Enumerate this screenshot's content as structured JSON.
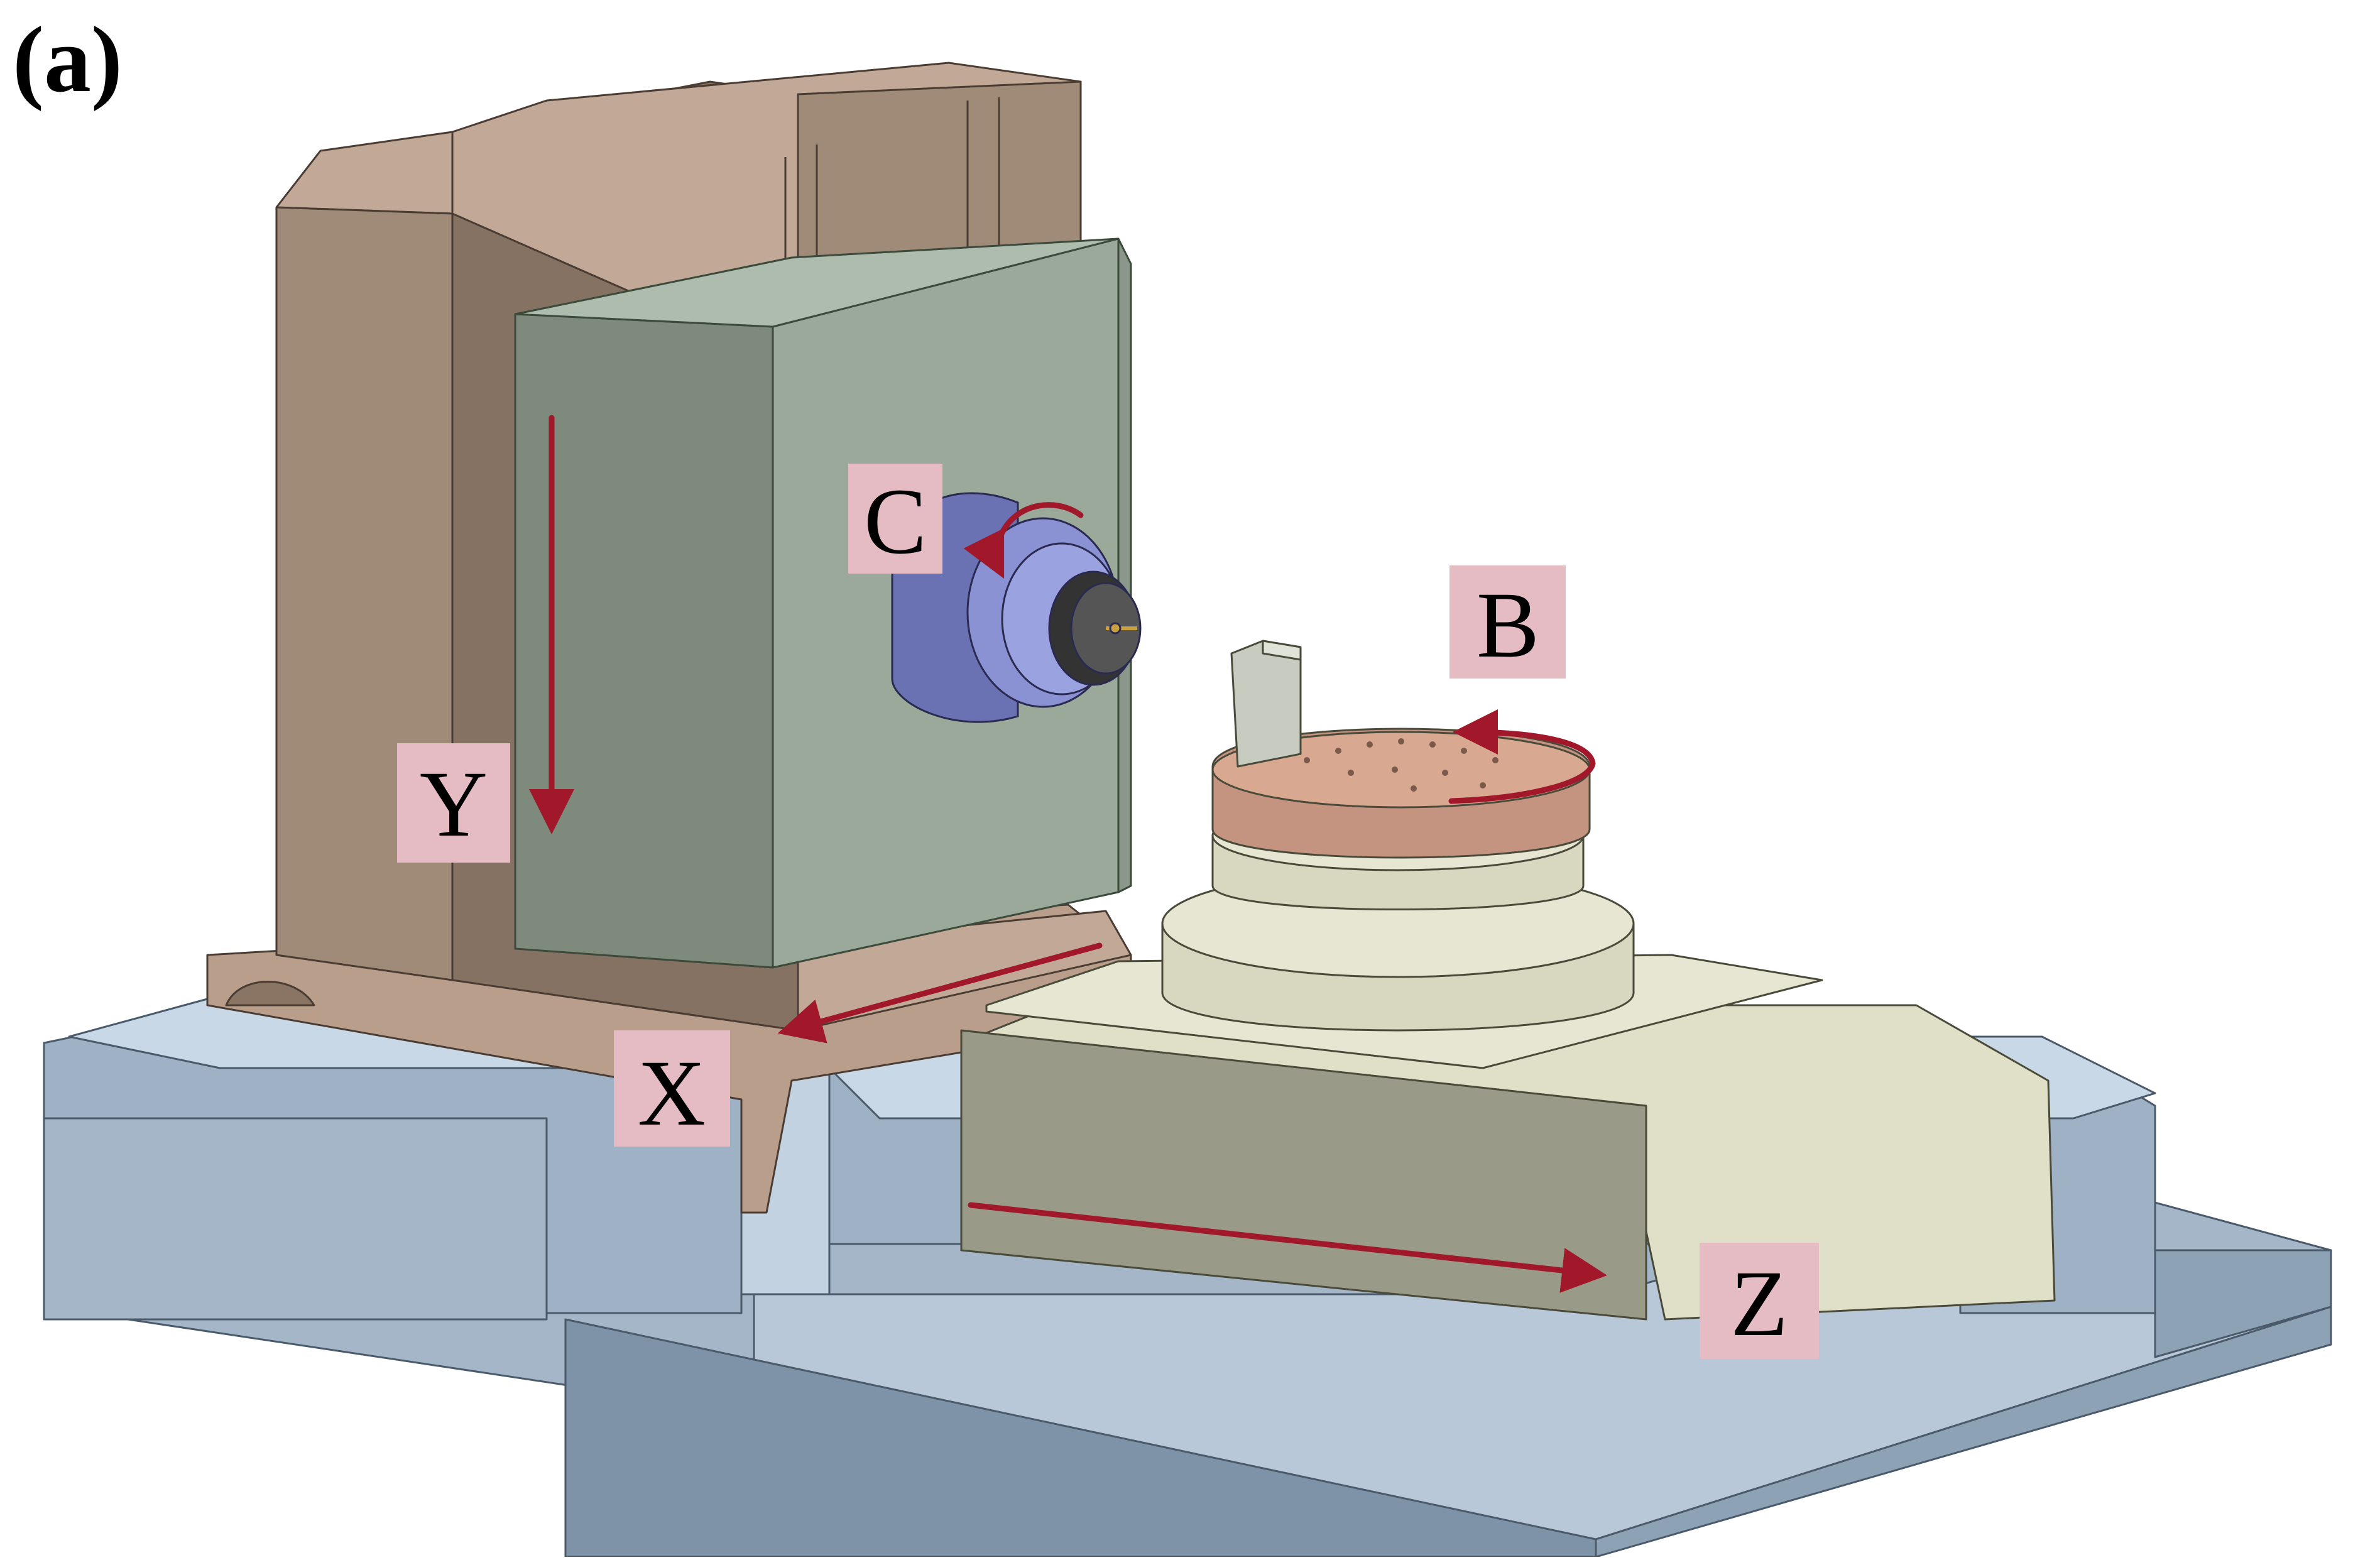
{
  "figure": {
    "panel_label": "(a)"
  },
  "axes": {
    "x": {
      "label": "X",
      "kind": "linear"
    },
    "y": {
      "label": "Y",
      "kind": "linear"
    },
    "z": {
      "label": "Z",
      "kind": "linear"
    },
    "b": {
      "label": "B",
      "kind": "rotary"
    },
    "c": {
      "label": "C",
      "kind": "rotary"
    }
  },
  "colors": {
    "column_brown": "#a08a78",
    "column_brown_dark": "#857262",
    "column_brown_light": "#c2a896",
    "headstock_green": "#9aa99a",
    "headstock_green_dark": "#7d8a7c",
    "spindle_blue": "#7c84c8",
    "bed_blue": "#a5b6c8",
    "bed_blue_dark": "#7f93a8",
    "bed_blue_light": "#c9d8e6",
    "table_cream": "#e0e0c8",
    "table_cream_dark": "#9a9a88",
    "rotary_copper": "#d8a890",
    "arrow_red": "#a0182a",
    "label_pink": "#e6bcc4"
  }
}
